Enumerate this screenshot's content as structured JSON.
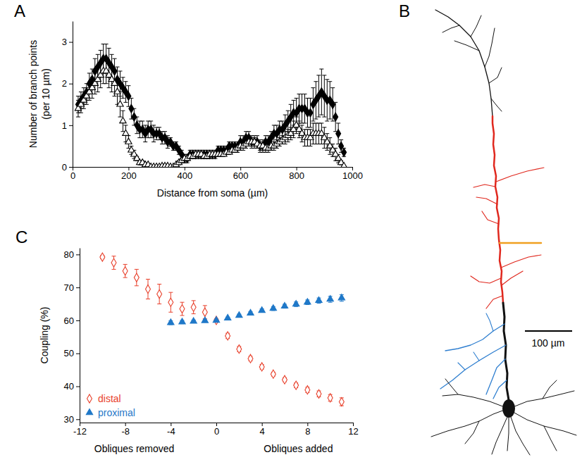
{
  "chart_data": [
    {
      "type": "scatter",
      "panel": "A",
      "xlabel": "Distance from soma (µm)",
      "ylabel": "Number of branch points\n(per 10 µm)",
      "xlim": [
        0,
        1000
      ],
      "xticks": [
        0,
        200,
        400,
        600,
        800,
        1000
      ],
      "ylim": [
        0,
        3.5
      ],
      "yticks": [
        0,
        1,
        2,
        3
      ],
      "x": [
        20,
        30,
        40,
        50,
        60,
        70,
        80,
        90,
        100,
        110,
        120,
        130,
        140,
        150,
        160,
        170,
        180,
        190,
        200,
        210,
        220,
        230,
        240,
        250,
        260,
        270,
        280,
        290,
        300,
        310,
        320,
        330,
        340,
        350,
        360,
        370,
        380,
        390,
        400,
        410,
        420,
        430,
        440,
        450,
        460,
        470,
        480,
        490,
        500,
        510,
        520,
        530,
        540,
        550,
        560,
        570,
        580,
        590,
        600,
        610,
        620,
        630,
        640,
        650,
        660,
        670,
        680,
        690,
        700,
        710,
        720,
        730,
        740,
        750,
        760,
        770,
        780,
        790,
        800,
        810,
        820,
        830,
        840,
        850,
        860,
        870,
        880,
        890,
        900,
        910,
        920,
        930,
        940,
        950,
        960,
        970
      ],
      "series": [
        {
          "color": "#000000",
          "marker": "diamond",
          "values": [
            1.5,
            1.6,
            1.7,
            1.8,
            2.0,
            2.1,
            2.3,
            2.4,
            2.5,
            2.6,
            2.6,
            2.5,
            2.4,
            2.3,
            2.1,
            2.0,
            1.9,
            1.8,
            1.7,
            1.4,
            1.2,
            1.0,
            0.9,
            0.9,
            0.8,
            0.9,
            0.9,
            0.8,
            0.8,
            0.8,
            0.7,
            0.7,
            0.6,
            0.6,
            0.5,
            0.5,
            0.4,
            0.3,
            0.2,
            0.2,
            0.3,
            0.3,
            0.3,
            0.3,
            0.3,
            0.3,
            0.3,
            0.3,
            0.3,
            0.3,
            0.4,
            0.4,
            0.4,
            0.4,
            0.5,
            0.5,
            0.5,
            0.5,
            0.6,
            0.6,
            0.7,
            0.7,
            0.6,
            0.6,
            0.6,
            0.5,
            0.5,
            0.6,
            0.6,
            0.7,
            0.8,
            0.8,
            0.9,
            0.9,
            1.0,
            1.1,
            1.2,
            1.3,
            1.3,
            1.4,
            1.4,
            1.4,
            1.3,
            1.3,
            1.5,
            1.6,
            1.7,
            1.8,
            1.7,
            1.6,
            1.6,
            1.5,
            1.2,
            0.8,
            0.5,
            0.35
          ],
          "errors": [
            0.2,
            0.2,
            0.2,
            0.2,
            0.25,
            0.25,
            0.3,
            0.3,
            0.3,
            0.35,
            0.35,
            0.35,
            0.3,
            0.3,
            0.3,
            0.3,
            0.25,
            0.25,
            0.25,
            0.25,
            0.2,
            0.2,
            0.2,
            0.2,
            0.2,
            0.2,
            0.2,
            0.2,
            0.15,
            0.15,
            0.15,
            0.15,
            0.15,
            0.1,
            0.1,
            0.1,
            0.1,
            0.1,
            0.1,
            0.1,
            0.1,
            0.1,
            0.1,
            0.1,
            0.1,
            0.1,
            0.1,
            0.1,
            0.1,
            0.1,
            0.1,
            0.1,
            0.1,
            0.1,
            0.1,
            0.1,
            0.1,
            0.1,
            0.15,
            0.15,
            0.15,
            0.15,
            0.15,
            0.15,
            0.15,
            0.15,
            0.15,
            0.15,
            0.15,
            0.15,
            0.2,
            0.2,
            0.2,
            0.2,
            0.25,
            0.25,
            0.3,
            0.3,
            0.35,
            0.35,
            0.35,
            0.35,
            0.35,
            0.35,
            0.4,
            0.45,
            0.5,
            0.55,
            0.5,
            0.5,
            0.45,
            0.4,
            0.35,
            0.25,
            0.15,
            0.1
          ]
        },
        {
          "color": "#000000",
          "marker": "triangle-open",
          "values": [
            1.4,
            1.5,
            1.6,
            1.7,
            1.8,
            1.9,
            2.0,
            2.1,
            2.2,
            2.3,
            2.3,
            2.2,
            2.1,
            2.0,
            1.8,
            1.5,
            1.1,
            0.8,
            0.6,
            0.4,
            0.3,
            0.2,
            0.1,
            0.1,
            0.05,
            0.05,
            0,
            0,
            0,
            0,
            0.02,
            0.02,
            0.02,
            0,
            0,
            0.05,
            0.1,
            0.15,
            0.2,
            0.2,
            0.25,
            0.25,
            0.3,
            0.3,
            0.3,
            0.25,
            0.25,
            0.3,
            0.3,
            0.3,
            0.3,
            0.3,
            0.3,
            0.35,
            0.35,
            0.4,
            0.4,
            0.45,
            0.5,
            0.5,
            0.55,
            0.6,
            0.6,
            0.6,
            0.55,
            0.5,
            0.5,
            0.45,
            0.45,
            0.5,
            0.5,
            0.55,
            0.6,
            0.65,
            0.7,
            0.75,
            0.8,
            0.9,
            1.0,
            0.9,
            0.8,
            0.7,
            0.7,
            0.7,
            0.8,
            0.8,
            0.8,
            0.8,
            0.7,
            0.6,
            0.5,
            0.4,
            0.3,
            0.2,
            0.1,
            0.02
          ],
          "errors": [
            0.2,
            0.2,
            0.2,
            0.2,
            0.2,
            0.25,
            0.25,
            0.3,
            0.3,
            0.3,
            0.3,
            0.3,
            0.3,
            0.3,
            0.3,
            0.3,
            0.25,
            0.2,
            0.15,
            0.1,
            0.1,
            0.05,
            0.05,
            0.05,
            0.03,
            0.03,
            0.02,
            0.02,
            0.02,
            0.02,
            0.02,
            0.02,
            0.02,
            0.02,
            0.02,
            0.03,
            0.05,
            0.05,
            0.05,
            0.05,
            0.05,
            0.05,
            0.05,
            0.05,
            0.05,
            0.05,
            0.05,
            0.05,
            0.05,
            0.05,
            0.05,
            0.05,
            0.05,
            0.05,
            0.05,
            0.05,
            0.05,
            0.1,
            0.1,
            0.1,
            0.1,
            0.1,
            0.1,
            0.1,
            0.1,
            0.1,
            0.1,
            0.1,
            0.1,
            0.1,
            0.1,
            0.1,
            0.1,
            0.1,
            0.15,
            0.15,
            0.15,
            0.2,
            0.2,
            0.2,
            0.2,
            0.2,
            0.2,
            0.2,
            0.25,
            0.25,
            0.25,
            0.25,
            0.25,
            0.2,
            0.2,
            0.15,
            0.15,
            0.1,
            0.05,
            0.02
          ]
        }
      ]
    },
    {
      "type": "scatter",
      "panel": "C",
      "xlabel": [
        "Obliques removed",
        "Obliques added"
      ],
      "ylabel": "Coupling (%)",
      "xlim": [
        -12,
        12
      ],
      "xticks": [
        -12,
        -8,
        -4,
        0,
        4,
        8,
        12
      ],
      "ylim": [
        29,
        82
      ],
      "yticks": [
        30,
        40,
        50,
        60,
        70,
        80
      ],
      "legend": "bottom-left",
      "series": [
        {
          "name": "distal",
          "color": "#e8412c",
          "marker": "diamond-open",
          "x": [
            -10,
            -9,
            -8,
            -7,
            -6,
            -5,
            -4,
            -3,
            -2,
            -1,
            0,
            1,
            2,
            3,
            4,
            5,
            6,
            7,
            8,
            9,
            10,
            11
          ],
          "values": [
            79.2,
            77.5,
            75,
            73,
            69.5,
            68,
            65.5,
            63.5,
            64,
            62.5,
            60,
            55.3,
            51.3,
            48.4,
            45.9,
            43.7,
            42,
            40.3,
            38.9,
            37.7,
            36.5,
            35.3
          ],
          "errors": [
            0.5,
            2,
            2,
            2.5,
            3,
            3,
            3,
            2,
            2,
            2,
            0.5,
            0.8,
            0.8,
            0.7,
            0.7,
            0.6,
            0.6,
            0.7,
            0.8,
            0.9,
            1,
            1.2
          ]
        },
        {
          "name": "proximal",
          "color": "#1f78c8",
          "marker": "triangle",
          "x": [
            -4,
            -3,
            -2,
            -1,
            0,
            1,
            2,
            3,
            4,
            5,
            6,
            7,
            8,
            9,
            10,
            11
          ],
          "values": [
            59.3,
            59.5,
            59.7,
            59.9,
            60,
            60.7,
            61.5,
            62.2,
            63,
            63.6,
            64.3,
            64.9,
            65.5,
            66,
            66.4,
            66.8
          ],
          "errors": [
            0.6,
            0.5,
            0.4,
            0.3,
            0.2,
            0.3,
            0.4,
            0.5,
            0.5,
            0.6,
            0.6,
            0.7,
            0.7,
            0.8,
            0.9,
            1
          ]
        }
      ]
    }
  ],
  "diagram": {
    "panel": "B",
    "scale_bar": "100 µm"
  }
}
